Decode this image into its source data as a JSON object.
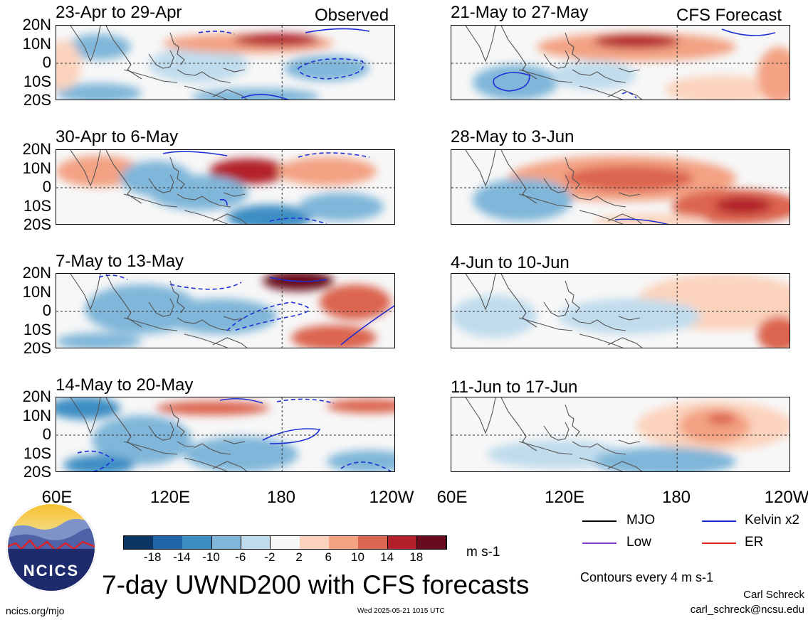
{
  "panels": [
    {
      "title": "23-Apr to 29-Apr",
      "tag": "Observed"
    },
    {
      "title": "21-May to 27-May",
      "tag": "CFS Forecast"
    },
    {
      "title": "30-Apr to 6-May",
      "tag": ""
    },
    {
      "title": "28-May to 3-Jun",
      "tag": ""
    },
    {
      "title": "7-May to 13-May",
      "tag": ""
    },
    {
      "title": "4-Jun to 10-Jun",
      "tag": ""
    },
    {
      "title": "14-May to 20-May",
      "tag": ""
    },
    {
      "title": "11-Jun to 17-Jun",
      "tag": ""
    }
  ],
  "lat_labels": [
    "20N",
    "10N",
    "0",
    "10S",
    "20S"
  ],
  "lon_labels": [
    "60E",
    "120E",
    "180",
    "120W"
  ],
  "colorbar": {
    "labels": [
      "-18",
      "-14",
      "-10",
      "-6",
      "-2",
      "2",
      "6",
      "10",
      "14",
      "18"
    ],
    "colors": [
      "#0b3565",
      "#1f66a8",
      "#3d8ec4",
      "#7fb6d9",
      "#c0dcec",
      "#f7f7f7",
      "#fbd3bd",
      "#f3a283",
      "#dc6550",
      "#b3202c",
      "#6a0a1e"
    ],
    "units": "m s-1"
  },
  "legend": [
    {
      "label": "MJO",
      "color": "#000000"
    },
    {
      "label": "Kelvin x2",
      "color": "#1f2fd6"
    },
    {
      "label": "Low",
      "color": "#8a3fd1"
    },
    {
      "label": "ER",
      "color": "#e0241f"
    }
  ],
  "contour_note": "Contours every 4 m s-1",
  "main_title": "7-day UWND200 with CFS forecasts",
  "logo_text": "NCICS",
  "footer": {
    "url": "ncics.org/mjo",
    "timestamp": "Wed 2025-05-21 1015 UTC",
    "author": "Carl Schreck",
    "email": "carl_schreck@ncsu.edu"
  }
}
